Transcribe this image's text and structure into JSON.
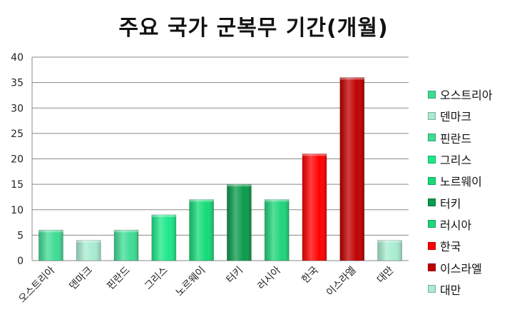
{
  "chart_data": {
    "type": "bar",
    "title": "주요 국가 군복무 기간(개월)",
    "xlabel": "",
    "ylabel": "",
    "ylim": [
      0,
      40
    ],
    "yticks": [
      0,
      5,
      10,
      15,
      20,
      25,
      30,
      35,
      40
    ],
    "grid": true,
    "legend_position": "right",
    "categories": [
      "오스트리아",
      "덴마크",
      "핀란드",
      "그리스",
      "노르웨이",
      "터키",
      "러시아",
      "한국",
      "이스라엘",
      "대만"
    ],
    "values": [
      6,
      4,
      6,
      9,
      12,
      15,
      12,
      21,
      36,
      4
    ],
    "colors": [
      "#3fdc95",
      "#a8ecd0",
      "#3fdc95",
      "#1de889",
      "#14db76",
      "#0a9b4c",
      "#1ed57a",
      "#ff0000",
      "#c00000",
      "#a8ecd0"
    ],
    "legend": [
      "오스트리아",
      "덴마크",
      "핀란드",
      "그리스",
      "노르웨이",
      "터키",
      "러시아",
      "한국",
      "이스라엘",
      "대만"
    ]
  }
}
